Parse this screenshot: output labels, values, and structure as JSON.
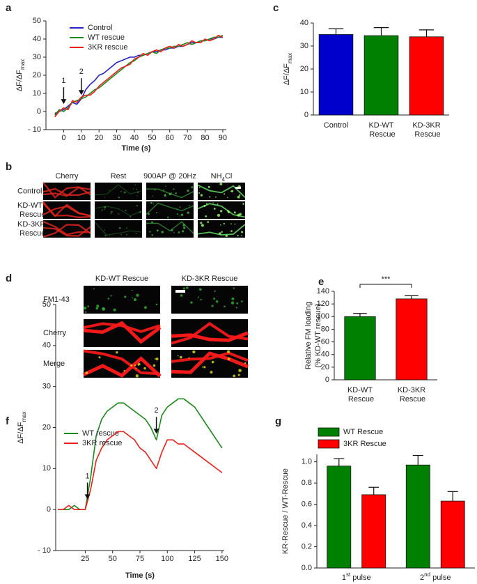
{
  "chart_data": [
    {
      "panel": "a",
      "type": "line",
      "xlabel": "Time (s)",
      "ylabel": "ΔF/ΔFmax",
      "x": [
        -5,
        -2.5,
        0,
        2.5,
        5,
        7.5,
        10,
        12.5,
        15,
        17.5,
        20,
        22.5,
        25,
        27.5,
        30,
        32.5,
        35,
        37.5,
        40,
        42.5,
        45,
        47.5,
        50,
        52.5,
        55,
        57.5,
        60,
        62.5,
        65,
        67.5,
        70,
        72.5,
        75,
        77.5,
        80,
        82.5,
        85,
        87.5,
        90
      ],
      "series": [
        {
          "name": "Control",
          "color": "#2323c8",
          "values": [
            -1,
            0,
            1,
            3,
            5,
            4,
            7,
            12,
            15,
            17,
            20,
            21,
            23,
            25,
            27,
            28,
            29,
            30,
            30,
            31,
            31,
            32,
            33,
            33,
            34,
            34,
            35,
            35,
            36,
            36,
            37,
            38,
            38,
            39,
            39,
            40,
            40,
            41,
            41
          ]
        },
        {
          "name": "WT rescue",
          "color": "#1a8a1a",
          "values": [
            -2,
            1,
            0,
            2,
            5,
            6,
            7,
            8,
            10,
            12,
            13,
            15,
            17,
            19,
            21,
            23,
            25,
            27,
            28,
            30,
            31,
            32,
            33,
            32,
            34,
            35,
            35,
            36,
            36,
            37,
            38,
            37,
            38,
            39,
            39,
            40,
            41,
            41,
            42
          ]
        },
        {
          "name": "3KR rescue",
          "color": "#e8201a",
          "values": [
            -3,
            0,
            2,
            1,
            6,
            5,
            8,
            9,
            9,
            11,
            14,
            16,
            18,
            20,
            22,
            24,
            25,
            26,
            29,
            30,
            32,
            31,
            33,
            34,
            33,
            35,
            36,
            35,
            37,
            36,
            37,
            39,
            38,
            38,
            40,
            39,
            40,
            42,
            41
          ]
        }
      ],
      "xlim": [
        -10,
        92
      ],
      "xticks": [
        0,
        10,
        20,
        30,
        40,
        50,
        60,
        70,
        80,
        90
      ],
      "ylim": [
        -10,
        50
      ],
      "yticks": [
        {
          "value": -10,
          "label": "- 10"
        },
        0,
        10,
        20,
        30,
        40,
        50
      ],
      "annotations": [
        {
          "text": "1",
          "x": 0,
          "y": 3
        },
        {
          "text": "2",
          "x": 10,
          "y": 8
        }
      ]
    },
    {
      "panel": "c",
      "type": "bar",
      "ylabel": "ΔF/ΔFmax",
      "categories": [
        "Control",
        "KD-WT Rescue",
        "KD-3KR Rescue"
      ],
      "values": [
        35,
        34.5,
        34
      ],
      "errors": [
        2.5,
        3.5,
        3
      ],
      "colors": [
        "#0000cc",
        "#008000",
        "#ff0000"
      ],
      "ylim": [
        0,
        40
      ],
      "yticks": [
        0,
        10,
        20,
        30,
        40
      ]
    },
    {
      "panel": "e",
      "type": "bar",
      "ylabel": [
        "Relative FM loading",
        "(% KD-WT rescue)"
      ],
      "categories": [
        "KD-WT Rescue",
        "KD-3KR Rescue"
      ],
      "values": [
        100,
        128
      ],
      "errors": [
        5,
        5
      ],
      "colors": [
        "#008000",
        "#ff0000"
      ],
      "ylim": [
        0,
        140
      ],
      "yticks": [
        0,
        20,
        40,
        60,
        80,
        100,
        120,
        140
      ],
      "significance": "***"
    },
    {
      "panel": "f",
      "type": "line",
      "xlabel": "Time (s)",
      "ylabel": "ΔF/ΔFmax",
      "x": [
        0,
        5,
        10,
        15,
        20,
        25,
        30,
        35,
        40,
        45,
        50,
        55,
        60,
        65,
        70,
        75,
        80,
        85,
        90,
        95,
        100,
        105,
        110,
        115,
        120,
        125,
        130,
        135,
        140,
        145,
        150
      ],
      "series": [
        {
          "name": "WT rescue",
          "color": "#1a8a1a",
          "values": [
            0,
            0,
            0,
            1,
            0,
            0,
            8,
            18,
            22,
            24,
            25,
            26,
            26,
            25,
            24,
            23,
            22,
            20,
            17,
            23,
            25,
            26,
            27,
            27,
            26,
            25,
            23,
            21,
            19,
            17,
            15
          ]
        },
        {
          "name": "3KR rescue",
          "color": "#e8201a",
          "values": [
            0,
            0,
            1,
            0,
            0,
            0,
            5,
            12,
            15,
            17,
            18,
            19,
            19,
            18,
            17,
            15,
            14,
            12,
            10,
            14,
            17,
            17,
            16,
            16,
            15,
            14,
            13,
            12,
            11,
            10,
            9
          ]
        }
      ],
      "xlim": [
        -2,
        152
      ],
      "xticks": [
        25,
        50,
        75,
        100,
        125,
        150
      ],
      "ylim": [
        -10,
        50
      ],
      "yticks": [
        {
          "value": -10,
          "label": "- 10"
        },
        0,
        10,
        20,
        30,
        40,
        50
      ],
      "annotations": [
        {
          "text": "1",
          "x": 27,
          "y": 2
        },
        {
          "text": "2",
          "x": 90,
          "y": 18
        }
      ]
    },
    {
      "panel": "g",
      "type": "bar",
      "ylabel": "KR-Rescue / WT-Rescue",
      "categories": [
        "1st pulse",
        "2nd pulse"
      ],
      "series": [
        {
          "name": "WT Rescue",
          "color": "#008000",
          "values": [
            0.96,
            0.97
          ],
          "errors": [
            0.07,
            0.09
          ]
        },
        {
          "name": "3KR Rescue",
          "color": "#ff0000",
          "values": [
            0.69,
            0.63
          ],
          "errors": [
            0.07,
            0.09
          ]
        }
      ],
      "ylim": [
        0,
        1.07
      ],
      "yticks": [
        {
          "value": 0,
          "label": "0.0"
        },
        0.2,
        0.4,
        0.6,
        0.8,
        {
          "value": 1,
          "label": "1.0"
        }
      ]
    }
  ],
  "image_panels": [
    {
      "panel": "b",
      "columns": [
        "Cherry",
        "Rest",
        "900AP @ 20Hz",
        "NH4Cl"
      ],
      "rows": [
        "Control",
        "KD-WT Rescue",
        "KD-3KR Rescue"
      ]
    },
    {
      "panel": "d",
      "columns": [
        "KD-WT Rescue",
        "KD-3KR Rescue"
      ],
      "rows": [
        "FM1-43",
        "Cherry",
        "Merge"
      ]
    }
  ]
}
